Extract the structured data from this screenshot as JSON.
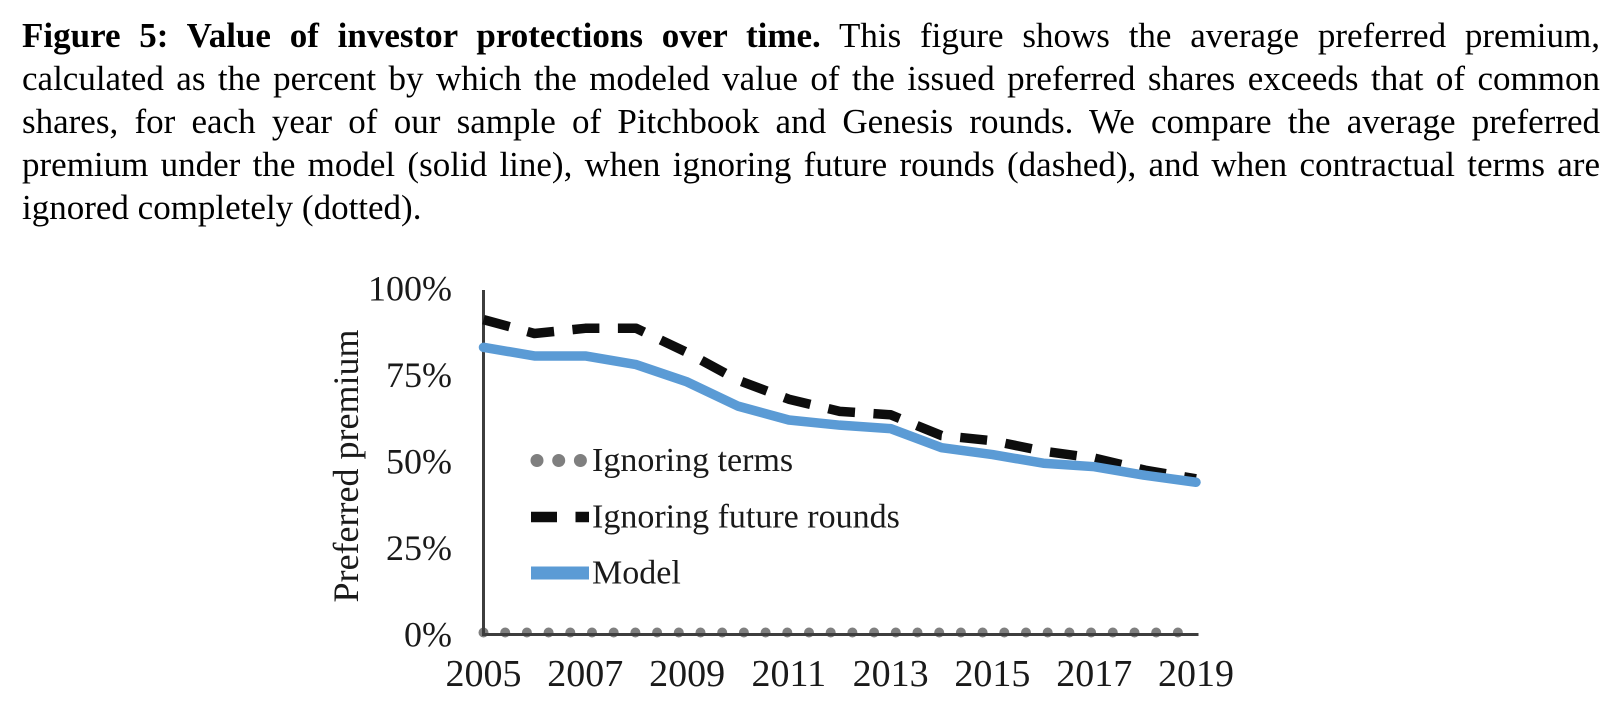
{
  "figure": {
    "caption_bold": "Figure 5: Value of investor protections over time.",
    "caption_text": "This figure shows the average preferred premium, calculated as the percent by which the modeled value of the issued preferred shares exceeds that of common shares, for each year of our sample of Pitchbook and Genesis rounds. We compare the average preferred premium under the model (solid line), when ignoring future rounds (dashed), and when contractual terms are ignored completely (dotted)."
  },
  "chart_data": {
    "type": "line",
    "title": "",
    "xlabel": "",
    "ylabel": "Preferred premium",
    "x": [
      2005,
      2006,
      2007,
      2008,
      2009,
      2010,
      2011,
      2012,
      2013,
      2014,
      2015,
      2016,
      2017,
      2018,
      2019
    ],
    "x_tick_labels": [
      "2005",
      "2007",
      "2009",
      "2011",
      "2013",
      "2015",
      "2017",
      "2019"
    ],
    "y_tick_labels": [
      "0%",
      "25%",
      "50%",
      "75%",
      "100%"
    ],
    "ylim": [
      0,
      100
    ],
    "grid": false,
    "legend_position": "inside-left-middle",
    "axis_color": "#3d3d3d",
    "series": [
      {
        "name": "Ignoring terms",
        "line_style": "dotted",
        "color": "#7f7f7f",
        "values": [
          0,
          0,
          0,
          0,
          0,
          0,
          0,
          0,
          0,
          0,
          0,
          0,
          0,
          0,
          0
        ]
      },
      {
        "name": "Ignoring future rounds",
        "line_style": "dashed",
        "color": "#0d0d0d",
        "values": [
          91,
          87,
          88.5,
          88.5,
          81.5,
          73.5,
          68,
          64.5,
          63.5,
          57.5,
          56,
          53,
          51,
          47.5,
          45
        ]
      },
      {
        "name": "Model",
        "line_style": "solid",
        "color": "#5b9bd5",
        "values": [
          83,
          80.5,
          80.5,
          78,
          73,
          66,
          62,
          60.5,
          59.5,
          54,
          52,
          49.5,
          48.5,
          46,
          44
        ]
      }
    ]
  }
}
